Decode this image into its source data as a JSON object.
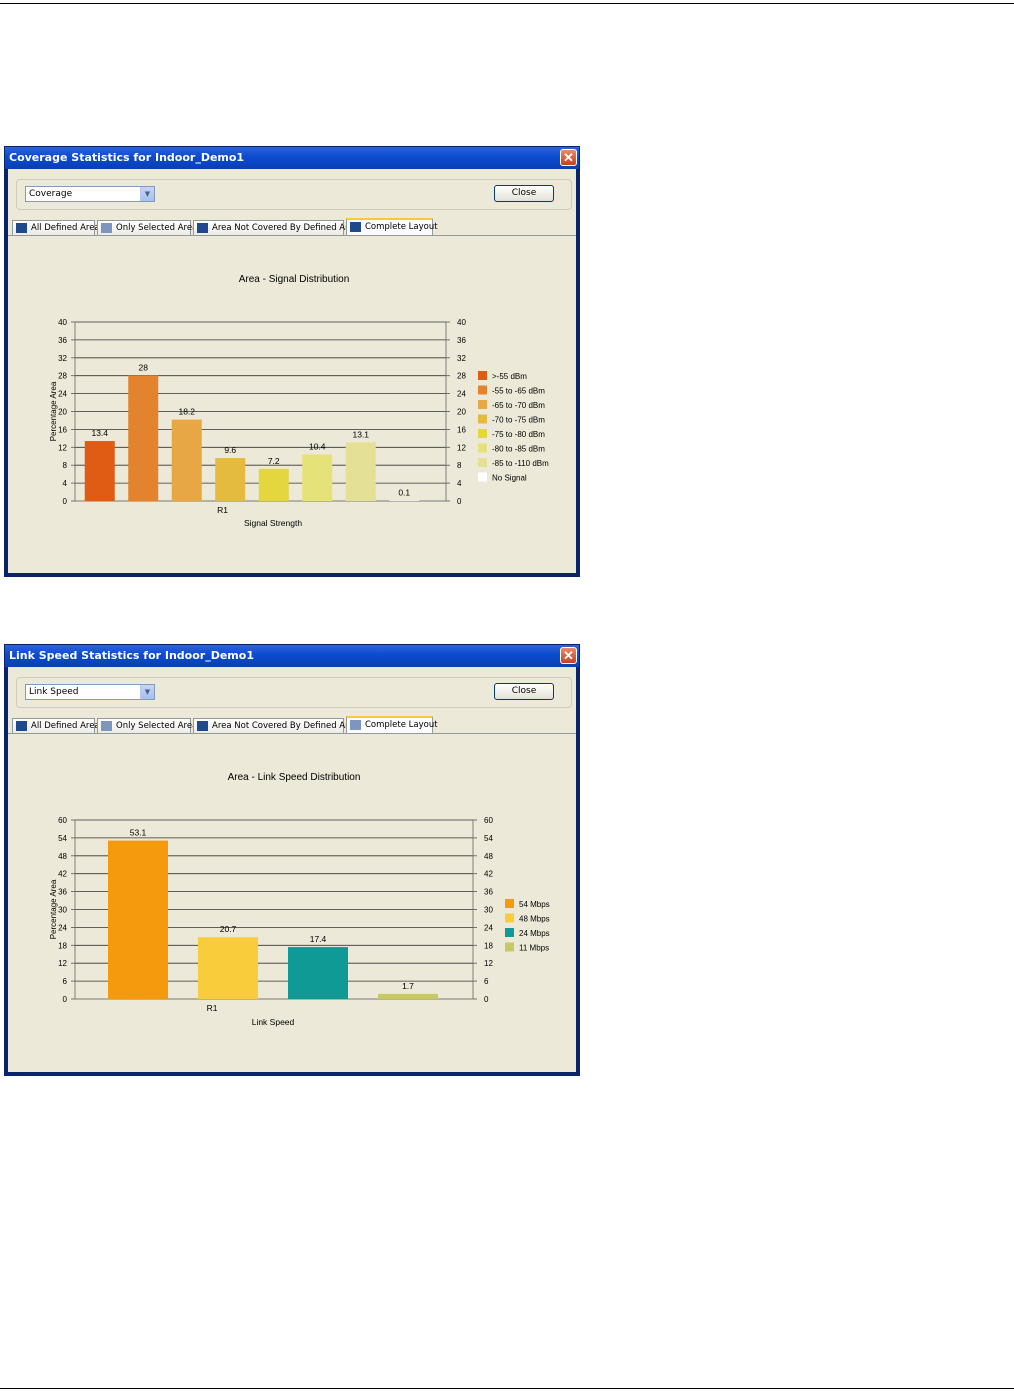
{
  "windows": [
    {
      "title": "Coverage Statistics for Indoor_Demo1",
      "close_glyph": "✕",
      "dropdown_value": "Coverage",
      "close_label": "Close",
      "tabs": [
        {
          "label": "All Defined Area",
          "icon": "grid-icon",
          "active": false
        },
        {
          "label": "Only Selected Area",
          "icon": "grid-light-icon",
          "active": false
        },
        {
          "label": "Area Not Covered By Defined Area",
          "icon": "grid-icon",
          "active": false
        },
        {
          "label": "Complete Layout",
          "icon": "grid-icon",
          "active": true
        }
      ],
      "chart_data": {
        "type": "bar",
        "title": "Area - Signal Distribution",
        "xlabel": "Signal Strength",
        "ylabel": "Percentage Area",
        "categories": [
          "R1"
        ],
        "ylim": [
          0,
          40
        ],
        "yticks": [
          0,
          4,
          8,
          12,
          16,
          20,
          24,
          28,
          32,
          36,
          40
        ],
        "grid": true,
        "legend_position": "right",
        "series": [
          {
            "name": ">-55 dBm",
            "values": [
              13.4
            ],
            "color": "#e05c14"
          },
          {
            "name": "-55 to -65 dBm",
            "values": [
              28
            ],
            "color": "#e3832e"
          },
          {
            "name": "-65 to -70 dBm",
            "values": [
              18.2
            ],
            "color": "#e6a744"
          },
          {
            "name": "-70 to -75 dBm",
            "values": [
              9.6
            ],
            "color": "#e4bb3e"
          },
          {
            "name": "-75 to -80 dBm",
            "values": [
              7.2
            ],
            "color": "#e3d63e"
          },
          {
            "name": "-80 to -85 dBm",
            "values": [
              10.4
            ],
            "color": "#e6e27a"
          },
          {
            "name": "-85 to -110 dBm",
            "values": [
              13.1
            ],
            "color": "#e4e096"
          },
          {
            "name": "No Signal",
            "values": [
              0.1
            ],
            "color": "#ffffff"
          }
        ]
      }
    },
    {
      "title": "Link Speed Statistics for Indoor_Demo1",
      "close_glyph": "✕",
      "dropdown_value": "Link Speed",
      "close_label": "Close",
      "tabs": [
        {
          "label": "All Defined Area",
          "icon": "grid-icon",
          "active": false
        },
        {
          "label": "Only Selected Area",
          "icon": "grid-light-icon",
          "active": false
        },
        {
          "label": "Area Not Covered By Defined Area",
          "icon": "grid-icon",
          "active": false
        },
        {
          "label": "Complete Layout",
          "icon": "grid-light-icon",
          "active": true
        }
      ],
      "chart_data": {
        "type": "bar",
        "title": "Area - Link Speed Distribution",
        "xlabel": "Link Speed",
        "ylabel": "Percentage Area",
        "categories": [
          "R1"
        ],
        "ylim": [
          0,
          60
        ],
        "yticks": [
          0,
          6,
          12,
          18,
          24,
          30,
          36,
          42,
          48,
          54,
          60
        ],
        "grid": true,
        "legend_position": "right",
        "series": [
          {
            "name": "54 Mbps",
            "values": [
              53.1
            ],
            "color": "#f59a0c"
          },
          {
            "name": "48 Mbps",
            "values": [
              20.7
            ],
            "color": "#f8cc3a"
          },
          {
            "name": "24 Mbps",
            "values": [
              17.4
            ],
            "color": "#0f9a95"
          },
          {
            "name": "11 Mbps",
            "values": [
              1.7
            ],
            "color": "#c9c866"
          }
        ]
      }
    }
  ]
}
